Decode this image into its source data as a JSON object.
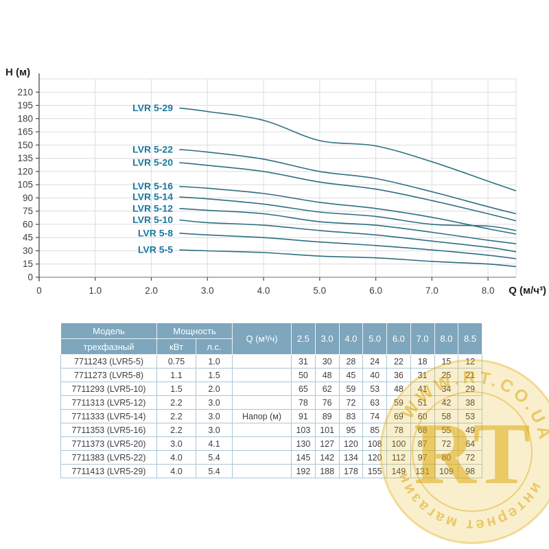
{
  "chart_data": {
    "type": "line",
    "title": "",
    "ylabel": "H (м)",
    "xlabel": "Q (м/ч³)",
    "xlim": [
      0,
      8.5
    ],
    "ylim": [
      0,
      225
    ],
    "y_tick_step": 15,
    "y_ticks": [
      0,
      15,
      30,
      45,
      60,
      75,
      90,
      105,
      120,
      135,
      150,
      165,
      180,
      195,
      210
    ],
    "x_ticks": [
      "0",
      "1.0",
      "2.0",
      "3.0",
      "4.0",
      "5.0",
      "6.0",
      "7.0",
      "8.0"
    ],
    "x_tick_values": [
      0,
      1,
      2,
      3,
      4,
      5,
      6,
      7,
      8
    ],
    "grid": true,
    "legend_position": "inline-left",
    "x": [
      2.5,
      3.0,
      4.0,
      5.0,
      6.0,
      7.0,
      8.0,
      8.5
    ],
    "series": [
      {
        "name": "LVR 5-29",
        "values": [
          192,
          188,
          178,
          155,
          149,
          131,
          109,
          98
        ]
      },
      {
        "name": "LVR 5-22",
        "values": [
          145,
          142,
          134,
          120,
          112,
          97,
          80,
          72
        ]
      },
      {
        "name": "LVR 5-20",
        "values": [
          130,
          127,
          120,
          108,
          100,
          87,
          72,
          64
        ]
      },
      {
        "name": "LVR 5-16",
        "values": [
          103,
          101,
          95,
          85,
          78,
          68,
          55,
          49
        ]
      },
      {
        "name": "LVR 5-14",
        "values": [
          91,
          89,
          83,
          74,
          69,
          60,
          58,
          53
        ]
      },
      {
        "name": "LVR 5-12",
        "values": [
          78,
          76,
          72,
          63,
          59,
          51,
          42,
          38
        ]
      },
      {
        "name": "LVR 5-10",
        "values": [
          65,
          62,
          59,
          53,
          48,
          41,
          34,
          29
        ]
      },
      {
        "name": "LVR 5-8",
        "values": [
          50,
          48,
          45,
          40,
          36,
          31,
          25,
          21
        ]
      },
      {
        "name": "LVR 5-5",
        "values": [
          31,
          30,
          28,
          24,
          22,
          18,
          15,
          12
        ]
      }
    ],
    "colors": {
      "curve": "#2c6e80",
      "series_label": "#17789f",
      "grid": "#dcdcdc",
      "baseline": "#b5b5b5",
      "axis_strong": "#4a4a4a",
      "tick_text": "#3d3d3d",
      "axis_title": "#1f1f1f"
    }
  },
  "table": {
    "header": {
      "model_top": "Модель",
      "model_bottom": "трехфазный",
      "power": "Мощность",
      "power_kw": "кВт",
      "power_hp": "л.с.",
      "q_label": "Q (м³/ч)",
      "flow_cols": [
        "2.5",
        "3.0",
        "4.0",
        "5.0",
        "6.0",
        "7.0",
        "8.0",
        "8.5"
      ]
    },
    "head_row_label": "Напор (м)",
    "head_row_label_index": 4,
    "rows": [
      {
        "model": "7711243 (LVR5-5)",
        "kw": "0.75",
        "hp": "1.0",
        "values": [
          31,
          30,
          28,
          24,
          22,
          18,
          15,
          12
        ]
      },
      {
        "model": "7711273 (LVR5-8)",
        "kw": "1.1",
        "hp": "1.5",
        "values": [
          50,
          48,
          45,
          40,
          36,
          31,
          25,
          21
        ]
      },
      {
        "model": "7711293 (LVR5-10)",
        "kw": "1.5",
        "hp": "2.0",
        "values": [
          65,
          62,
          59,
          53,
          48,
          41,
          34,
          29
        ]
      },
      {
        "model": "7711313 (LVR5-12)",
        "kw": "2.2",
        "hp": "3.0",
        "values": [
          78,
          76,
          72,
          63,
          59,
          51,
          42,
          38
        ]
      },
      {
        "model": "7711333 (LVR5-14)",
        "kw": "2.2",
        "hp": "3.0",
        "values": [
          91,
          89,
          83,
          74,
          69,
          60,
          58,
          53
        ]
      },
      {
        "model": "7711353 (LVR5-16)",
        "kw": "2.2",
        "hp": "3.0",
        "values": [
          103,
          101,
          95,
          85,
          78,
          68,
          55,
          49
        ]
      },
      {
        "model": "7711373 (LVR5-20)",
        "kw": "3.0",
        "hp": "4.1",
        "values": [
          130,
          127,
          120,
          108,
          100,
          87,
          72,
          64
        ]
      },
      {
        "model": "7711383 (LVR5-22)",
        "kw": "4.0",
        "hp": "5.4",
        "values": [
          145,
          142,
          134,
          120,
          112,
          97,
          80,
          72
        ]
      },
      {
        "model": "7711413 (LVR5-29)",
        "kw": "4.0",
        "hp": "5.4",
        "values": [
          192,
          188,
          178,
          155,
          149,
          131,
          109,
          98
        ]
      }
    ]
  },
  "watermark": {
    "top_text": "WWW.RT.CO.UA",
    "bottom_text": "интернет магазин",
    "monogram": "RT",
    "disc_color": "#eab71c",
    "accent_color": "#d9a300"
  }
}
